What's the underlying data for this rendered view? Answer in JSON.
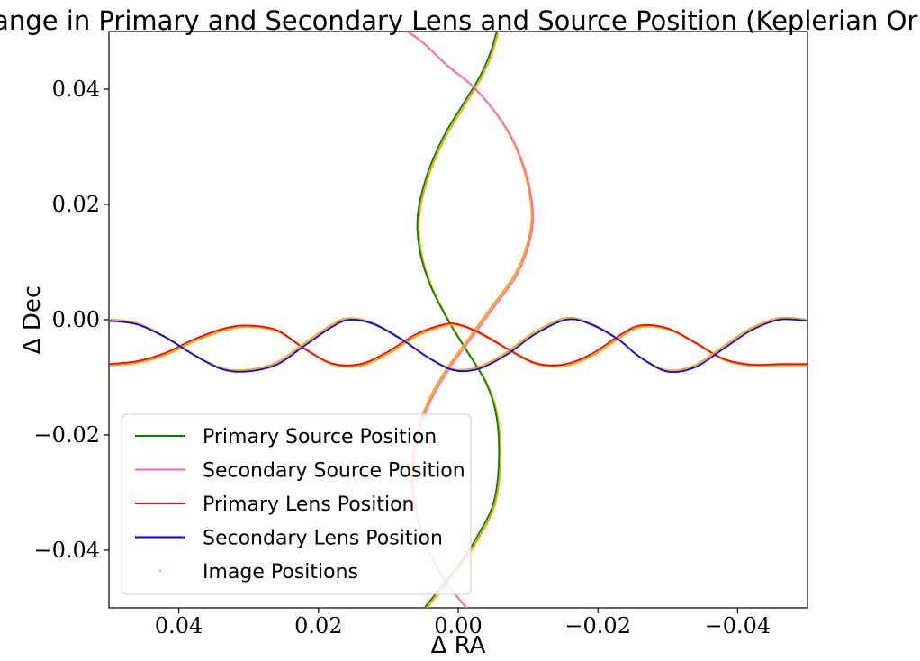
{
  "chart_data": {
    "type": "line",
    "title": "Change in Primary and Secondary Lens and Source Position (Keplerian Orbit)",
    "xlabel": "Δ RA",
    "ylabel": "Δ Dec",
    "xlim": [
      0.05,
      -0.05
    ],
    "ylim": [
      -0.05,
      0.05
    ],
    "xticks": [
      {
        "value": 0.04,
        "label": "0.04"
      },
      {
        "value": 0.02,
        "label": "0.02"
      },
      {
        "value": 0.0,
        "label": "0.00"
      },
      {
        "value": -0.02,
        "label": "−0.02"
      },
      {
        "value": -0.04,
        "label": "−0.04"
      }
    ],
    "yticks": [
      {
        "value": 0.04,
        "label": "0.04"
      },
      {
        "value": 0.02,
        "label": "0.02"
      },
      {
        "value": 0.0,
        "label": "0.00"
      },
      {
        "value": -0.02,
        "label": "−0.02"
      },
      {
        "value": -0.04,
        "label": "−0.04"
      }
    ],
    "grid": false,
    "legend_position": "lower-left",
    "series": [
      {
        "name": "Primary Source Position",
        "color": "#008000",
        "x": [
          -0.0055,
          -0.0045,
          -0.003,
          -0.0005,
          0.002,
          0.0045,
          0.0058,
          0.0055,
          0.004,
          0.0015,
          -0.001,
          -0.004,
          -0.0055,
          -0.0058,
          -0.005,
          -0.003,
          -0.001,
          0.0015,
          0.0035,
          0.0048,
          0.0052
        ],
        "y": [
          0.05,
          0.046,
          0.042,
          0.037,
          0.032,
          0.025,
          0.018,
          0.012,
          0.006,
          0.0,
          -0.005,
          -0.011,
          -0.017,
          -0.025,
          -0.032,
          -0.037,
          -0.041,
          -0.045,
          -0.048,
          -0.05,
          -0.051
        ]
      },
      {
        "name": "Secondary Source Position",
        "color": "#ff69b4",
        "x": [
          0.0085,
          0.005,
          0.0015,
          -0.0025,
          -0.0065,
          -0.009,
          -0.0105,
          -0.0105,
          -0.0085,
          -0.005,
          -0.002,
          0.001,
          0.0035,
          0.0055,
          0.0065,
          0.006,
          0.0045,
          0.002,
          -0.0005,
          -0.002
        ],
        "y": [
          0.051,
          0.048,
          0.044,
          0.04,
          0.034,
          0.028,
          0.021,
          0.015,
          0.008,
          0.002,
          -0.003,
          -0.008,
          -0.013,
          -0.019,
          -0.026,
          -0.033,
          -0.039,
          -0.045,
          -0.049,
          -0.051
        ]
      },
      {
        "name": "Primary Lens Position",
        "color": "#ff0000",
        "x": [
          0.05,
          0.046,
          0.042,
          0.038,
          0.034,
          0.0305,
          0.026,
          0.022,
          0.018,
          0.014,
          0.01,
          0.006,
          0.002,
          0.0,
          -0.003,
          -0.007,
          -0.011,
          -0.015,
          -0.019,
          -0.023,
          -0.026,
          -0.03,
          -0.034,
          -0.038,
          -0.042,
          -0.046,
          -0.05
        ],
        "y": [
          -0.0077,
          -0.0072,
          -0.0058,
          -0.0035,
          -0.0017,
          -0.001,
          -0.0018,
          -0.005,
          -0.0076,
          -0.0077,
          -0.0055,
          -0.0025,
          -0.0008,
          -0.0008,
          -0.0022,
          -0.005,
          -0.0075,
          -0.0078,
          -0.006,
          -0.0028,
          -0.001,
          -0.0015,
          -0.004,
          -0.0068,
          -0.0078,
          -0.0077,
          -0.0077
        ]
      },
      {
        "name": "Secondary Lens Position",
        "color": "#0000ff",
        "x": [
          0.05,
          0.046,
          0.042,
          0.038,
          0.034,
          0.0305,
          0.026,
          0.022,
          0.018,
          0.0155,
          0.012,
          0.008,
          0.004,
          0.0005,
          -0.003,
          -0.007,
          -0.011,
          -0.0155,
          -0.019,
          -0.023,
          -0.026,
          -0.03,
          -0.034,
          -0.038,
          -0.042,
          -0.046,
          -0.05
        ],
        "y": [
          -0.0002,
          -0.0008,
          -0.003,
          -0.006,
          -0.0085,
          -0.009,
          -0.0078,
          -0.0045,
          -0.0012,
          0.0,
          -0.0008,
          -0.0035,
          -0.0068,
          -0.0088,
          -0.0085,
          -0.006,
          -0.0025,
          0.0,
          -0.0008,
          -0.0035,
          -0.0065,
          -0.009,
          -0.0082,
          -0.005,
          -0.0018,
          0.0,
          -0.0002
        ]
      }
    ],
    "image_positions_label": "Image Positions",
    "image_positions_color": "#ffa500"
  }
}
